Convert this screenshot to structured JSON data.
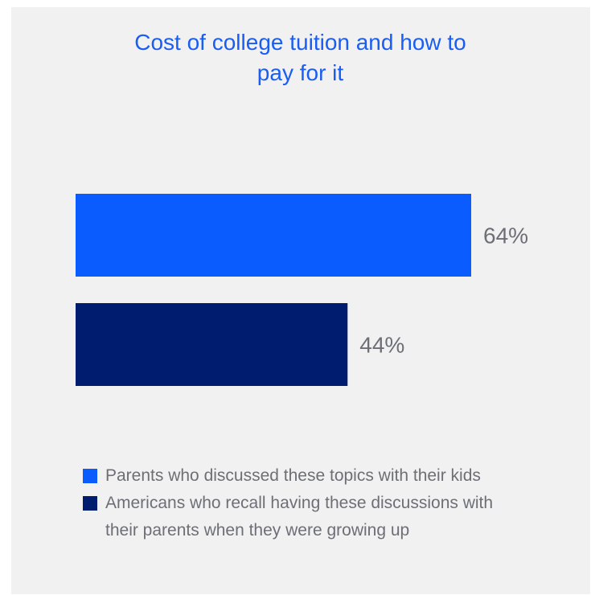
{
  "chart_data": {
    "type": "bar",
    "orientation": "horizontal",
    "title_lines": [
      "Cost of college tuition and how to",
      "pay for it"
    ],
    "series": [
      {
        "name": "Parents who discussed these topics with their kids",
        "value": 64,
        "label": "64%",
        "color": "#0a5cff"
      },
      {
        "name": "Americans who recall having these discussions with their parents when they were growing up",
        "value": 44,
        "label": "44%",
        "color": "#001c6f"
      }
    ],
    "xlim": [
      0,
      100
    ],
    "grid": false,
    "legend_placement": "bottom"
  },
  "legend": {
    "items": [
      {
        "lines": [
          "Parents who discussed these topics with their kids"
        ],
        "color": "#0a5cff"
      },
      {
        "lines": [
          "Americans who recall having these discussions with",
          "their parents when they were growing up"
        ],
        "color": "#001c6f"
      }
    ]
  },
  "colors": {
    "background": "#f1f1f2",
    "title": "#1a5df3",
    "label_text": "#6d6f76"
  }
}
